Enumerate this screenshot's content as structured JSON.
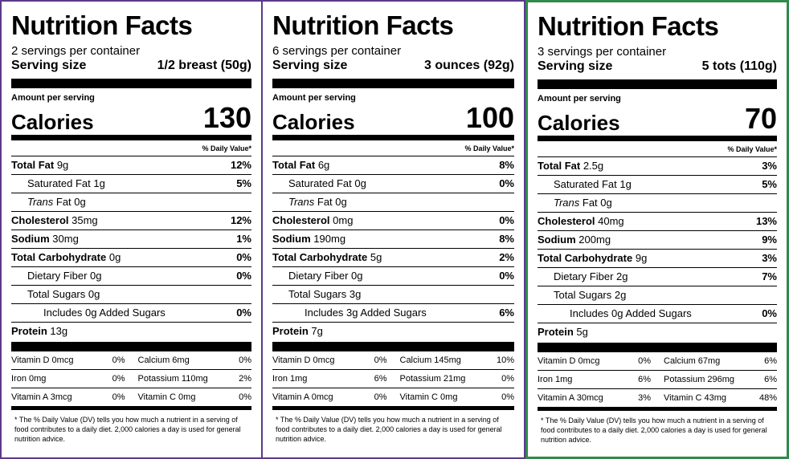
{
  "panels": [
    {
      "title": "Nutrition Facts",
      "servings": "2 servings per container",
      "serving_size_label": "Serving size",
      "serving_size_value": "1/2 breast (50g)",
      "amount_label": "Amount per serving",
      "calories_label": "Calories",
      "calories_value": "130",
      "dv_header": "% Daily Value*",
      "nutrients": [
        {
          "bold": "Total Fat",
          "name": "",
          "amount": "9g",
          "dv": "12%"
        },
        {
          "bold": "",
          "name": "Saturated Fat",
          "amount": "1g",
          "dv": "5%"
        },
        {
          "bold": "",
          "name": "Trans Fat",
          "amount": "0g",
          "dv": ""
        },
        {
          "bold": "Cholesterol",
          "name": "",
          "amount": "35mg",
          "dv": "12%"
        },
        {
          "bold": "Sodium",
          "name": "",
          "amount": "30mg",
          "dv": "1%"
        },
        {
          "bold": "Total Carbohydrate",
          "name": "",
          "amount": "0g",
          "dv": "0%"
        },
        {
          "bold": "",
          "name": "Dietary Fiber",
          "amount": "0g",
          "dv": "0%"
        },
        {
          "bold": "",
          "name": "Total Sugars",
          "amount": "0g",
          "dv": ""
        },
        {
          "bold": "",
          "name": "Includes 0g Added Sugars",
          "amount": "",
          "dv": "0%"
        },
        {
          "bold": "Protein",
          "name": "",
          "amount": "13g",
          "dv": ""
        }
      ],
      "vitamins": [
        {
          "left_label": "Vitamin D 0mcg",
          "left_dv": "0%",
          "right_label": "Calcium 6mg",
          "right_dv": "0%"
        },
        {
          "left_label": "Iron 0mg",
          "left_dv": "0%",
          "right_label": "Potassium 110mg",
          "right_dv": "2%"
        },
        {
          "left_label": "Vitamin A 3mcg",
          "left_dv": "0%",
          "right_label": "Vitamin C 0mg",
          "right_dv": "0%"
        }
      ],
      "footnote": "* The % Daily Value (DV) tells you how much a nutrient in a serving of food contributes to a daily diet. 2,000 calories a day is used for general nutrition advice."
    },
    {
      "title": "Nutrition Facts",
      "servings": "6 servings per container",
      "serving_size_label": "Serving size",
      "serving_size_value": "3 ounces (92g)",
      "amount_label": "Amount per serving",
      "calories_label": "Calories",
      "calories_value": "100",
      "dv_header": "% Daily Value*",
      "nutrients": [
        {
          "bold": "Total Fat",
          "name": "",
          "amount": "6g",
          "dv": "8%"
        },
        {
          "bold": "",
          "name": "Saturated Fat",
          "amount": "0g",
          "dv": "0%"
        },
        {
          "bold": "",
          "name": "Trans Fat",
          "amount": "0g",
          "dv": ""
        },
        {
          "bold": "Cholesterol",
          "name": "",
          "amount": "0mg",
          "dv": "0%"
        },
        {
          "bold": "Sodium",
          "name": "",
          "amount": "190mg",
          "dv": "8%"
        },
        {
          "bold": "Total Carbohydrate",
          "name": "",
          "amount": "5g",
          "dv": "2%"
        },
        {
          "bold": "",
          "name": "Dietary Fiber",
          "amount": "0g",
          "dv": "0%"
        },
        {
          "bold": "",
          "name": "Total Sugars",
          "amount": "3g",
          "dv": ""
        },
        {
          "bold": "",
          "name": "Includes 3g Added Sugars",
          "amount": "",
          "dv": "6%"
        },
        {
          "bold": "Protein",
          "name": "",
          "amount": "7g",
          "dv": ""
        }
      ],
      "vitamins": [
        {
          "left_label": "Vitamin D 0mcg",
          "left_dv": "0%",
          "right_label": "Calcium 145mg",
          "right_dv": "10%"
        },
        {
          "left_label": "Iron 1mg",
          "left_dv": "6%",
          "right_label": "Potassium 21mg",
          "right_dv": "0%"
        },
        {
          "left_label": "Vitamin A 0mcg",
          "left_dv": "0%",
          "right_label": "Vitamin C 0mg",
          "right_dv": "0%"
        }
      ],
      "footnote": "* The % Daily Value (DV) tells you how much a nutrient in a serving of food contributes to a daily diet. 2,000 calories a day is used for general nutrition advice."
    },
    {
      "title": "Nutrition Facts",
      "servings": "3 servings per container",
      "serving_size_label": "Serving size",
      "serving_size_value": "5 tots (110g)",
      "amount_label": "Amount per serving",
      "calories_label": "Calories",
      "calories_value": "70",
      "dv_header": "% Daily Value*",
      "nutrients": [
        {
          "bold": "Total Fat",
          "name": "",
          "amount": "2.5g",
          "dv": "3%"
        },
        {
          "bold": "",
          "name": "Saturated Fat",
          "amount": "1g",
          "dv": "5%"
        },
        {
          "bold": "",
          "name": "Trans Fat",
          "amount": "0g",
          "dv": ""
        },
        {
          "bold": "Cholesterol",
          "name": "",
          "amount": "40mg",
          "dv": "13%"
        },
        {
          "bold": "Sodium",
          "name": "",
          "amount": "200mg",
          "dv": "9%"
        },
        {
          "bold": "Total Carbohydrate",
          "name": "",
          "amount": "9g",
          "dv": "3%"
        },
        {
          "bold": "",
          "name": "Dietary Fiber",
          "amount": "2g",
          "dv": "7%"
        },
        {
          "bold": "",
          "name": "Total Sugars",
          "amount": "2g",
          "dv": ""
        },
        {
          "bold": "",
          "name": "Includes 0g Added Sugars",
          "amount": "",
          "dv": "0%"
        },
        {
          "bold": "Protein",
          "name": "",
          "amount": "5g",
          "dv": ""
        }
      ],
      "vitamins": [
        {
          "left_label": "Vitamin D 0mcg",
          "left_dv": "0%",
          "right_label": "Calcium 67mg",
          "right_dv": "6%"
        },
        {
          "left_label": "Iron 1mg",
          "left_dv": "6%",
          "right_label": "Potassium 296mg",
          "right_dv": "6%"
        },
        {
          "left_label": "Vitamin A 30mcg",
          "left_dv": "3%",
          "right_label": "Vitamin C 43mg",
          "right_dv": "48%"
        }
      ],
      "footnote": "* The % Daily Value (DV) tells you how much a nutrient in a serving of food contributes to a daily diet. 2,000 calories a day is used for general nutrition advice."
    }
  ],
  "border_colors": {
    "purple": "#5b3a8a",
    "green": "#2f8a4b"
  }
}
